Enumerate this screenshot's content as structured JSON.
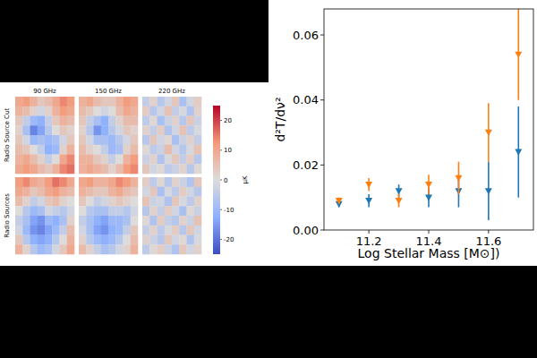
{
  "chart_data": [
    {
      "type": "heatmap",
      "columns": [
        "90 GHz",
        "150 GHz",
        "220 GHz"
      ],
      "rows": [
        "Radio Source Cut",
        "Radio Sources"
      ],
      "panels": [
        [
          [
            [
              10,
              12,
              8,
              4,
              6,
              10,
              14,
              12
            ],
            [
              8,
              6,
              2,
              -2,
              2,
              8,
              12,
              10
            ],
            [
              4,
              -4,
              -10,
              -12,
              -4,
              4,
              8,
              6
            ],
            [
              2,
              -8,
              -18,
              -14,
              -6,
              0,
              4,
              2
            ],
            [
              4,
              -2,
              -10,
              -8,
              -10,
              -8,
              -2,
              4
            ],
            [
              6,
              4,
              0,
              -4,
              -12,
              -10,
              2,
              8
            ],
            [
              8,
              10,
              6,
              2,
              -4,
              0,
              10,
              14
            ],
            [
              10,
              12,
              10,
              6,
              4,
              8,
              14,
              16
            ]
          ],
          [
            [
              8,
              10,
              6,
              4,
              4,
              8,
              12,
              10
            ],
            [
              6,
              4,
              0,
              -2,
              0,
              6,
              10,
              8
            ],
            [
              4,
              -4,
              -8,
              -12,
              -4,
              2,
              6,
              6
            ],
            [
              2,
              -6,
              -16,
              -12,
              -6,
              -2,
              4,
              2
            ],
            [
              4,
              -2,
              -8,
              -8,
              -10,
              -6,
              -2,
              4
            ],
            [
              6,
              2,
              0,
              -4,
              -10,
              -8,
              2,
              6
            ],
            [
              8,
              8,
              4,
              2,
              -4,
              0,
              8,
              12
            ],
            [
              8,
              10,
              8,
              6,
              2,
              6,
              12,
              14
            ]
          ],
          [
            [
              -4,
              2,
              -6,
              -2,
              4,
              -8,
              -2,
              3
            ],
            [
              3,
              -6,
              -2,
              5,
              -4,
              -1,
              -7,
              2
            ],
            [
              -5,
              1,
              -8,
              -3,
              2,
              -6,
              4,
              -3
            ],
            [
              2,
              -4,
              3,
              -7,
              -2,
              5,
              -5,
              -1
            ],
            [
              -6,
              4,
              -2,
              1,
              -8,
              -3,
              2,
              -4
            ],
            [
              1,
              -5,
              -3,
              6,
              -2,
              -6,
              -1,
              5
            ],
            [
              -3,
              2,
              -7,
              -1,
              4,
              -4,
              3,
              -6
            ],
            [
              4,
              -2,
              1,
              -5,
              -3,
              2,
              -6,
              1
            ]
          ]
        ],
        [
          [
            [
              12,
              14,
              10,
              8,
              12,
              16,
              14,
              10
            ],
            [
              10,
              8,
              4,
              6,
              10,
              12,
              8,
              6
            ],
            [
              6,
              2,
              -4,
              -2,
              4,
              6,
              2,
              0
            ],
            [
              0,
              -6,
              -10,
              -8,
              -2,
              -4,
              -6,
              -2
            ],
            [
              -4,
              -8,
              -14,
              -16,
              -10,
              -12,
              -8,
              2
            ],
            [
              -2,
              -10,
              -16,
              -18,
              -14,
              -10,
              -4,
              6
            ],
            [
              4,
              -6,
              -12,
              -14,
              -12,
              -6,
              0,
              8
            ],
            [
              8,
              2,
              -6,
              -10,
              -8,
              -2,
              4,
              10
            ]
          ],
          [
            [
              10,
              12,
              8,
              8,
              10,
              14,
              12,
              8
            ],
            [
              8,
              6,
              4,
              4,
              8,
              10,
              6,
              4
            ],
            [
              4,
              0,
              -4,
              -2,
              2,
              4,
              2,
              0
            ],
            [
              0,
              -6,
              -8,
              -8,
              -4,
              -4,
              -6,
              -2
            ],
            [
              -4,
              -8,
              -12,
              -14,
              -10,
              -10,
              -8,
              0
            ],
            [
              -2,
              -8,
              -14,
              -16,
              -12,
              -10,
              -4,
              4
            ],
            [
              2,
              -6,
              -10,
              -12,
              -10,
              -6,
              0,
              6
            ],
            [
              6,
              2,
              -4,
              -8,
              -6,
              -2,
              2,
              8
            ]
          ],
          [
            [
              3,
              -5,
              1,
              -6,
              2,
              -3,
              -7,
              4
            ],
            [
              -2,
              4,
              -8,
              -1,
              -5,
              3,
              -2,
              -6
            ],
            [
              5,
              -3,
              -2,
              -7,
              4,
              -1,
              -5,
              2
            ],
            [
              -6,
              2,
              -4,
              3,
              -2,
              -8,
              1,
              -3
            ],
            [
              1,
              -7,
              3,
              -4,
              -6,
              2,
              -3,
              5
            ],
            [
              -4,
              2,
              -5,
              -1,
              3,
              -6,
              4,
              -2
            ],
            [
              2,
              -3,
              -6,
              4,
              -2,
              1,
              -7,
              -1
            ],
            [
              -5,
              1,
              3,
              -3,
              -7,
              4,
              -2,
              2
            ]
          ]
        ]
      ],
      "colorbar": {
        "range": [
          -25,
          25
        ],
        "ticks": [
          -20,
          -10,
          0,
          10,
          20
        ],
        "label": "μK"
      }
    },
    {
      "type": "scatter",
      "x": [
        11.1,
        11.2,
        11.3,
        11.4,
        11.5,
        11.6,
        11.7
      ],
      "series": [
        {
          "color": "#1f77b4",
          "marker": "triangle-down",
          "values": [
            0.008,
            0.009,
            0.012,
            0.01,
            0.012,
            0.012,
            0.024
          ],
          "errors": [
            0.001,
            0.002,
            0.002,
            0.003,
            0.005,
            0.009,
            0.014
          ]
        },
        {
          "color": "#ff7f0e",
          "marker": "triangle-down",
          "values": [
            0.009,
            0.014,
            0.009,
            0.014,
            0.016,
            0.03,
            0.054
          ],
          "errors": [
            0.001,
            0.002,
            0.002,
            0.003,
            0.005,
            0.009,
            0.014
          ]
        }
      ],
      "x_label": "Log Stellar Mass [M⊙])",
      "y_label": "d²T/dν²",
      "xlim": [
        11.05,
        11.75
      ],
      "ylim": [
        0,
        0.068
      ],
      "xticks": [
        11.2,
        11.4,
        11.6
      ],
      "yticks": [
        {
          "value": 0,
          "label": "0.00"
        },
        {
          "value": 0.02,
          "label": "0.02"
        },
        {
          "value": 0.04,
          "label": "0.04"
        },
        {
          "value": 0.06,
          "label": "0.06"
        }
      ]
    }
  ]
}
